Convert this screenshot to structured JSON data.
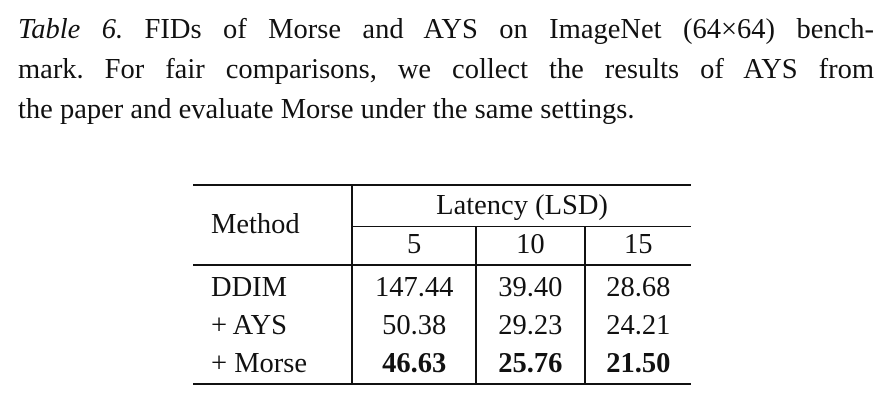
{
  "caption": {
    "label": "Table 6.",
    "line1": "FIDs of Morse and AYS on ImageNet (64×64) bench-",
    "line2": "mark. For fair comparisons, we collect the results of AYS from",
    "line3": "the paper and evaluate Morse under the same settings."
  },
  "table": {
    "method_header": "Method",
    "group_header": "Latency (LSD)",
    "latency_cols": [
      "5",
      "10",
      "15"
    ],
    "rows": [
      {
        "method": "DDIM",
        "values": [
          "147.44",
          "39.40",
          "28.68"
        ]
      },
      {
        "method": "+ AYS",
        "values": [
          "50.38",
          "29.23",
          "24.21"
        ]
      },
      {
        "method": "+ Morse",
        "values": [
          "46.63",
          "25.76",
          "21.50"
        ]
      }
    ]
  }
}
